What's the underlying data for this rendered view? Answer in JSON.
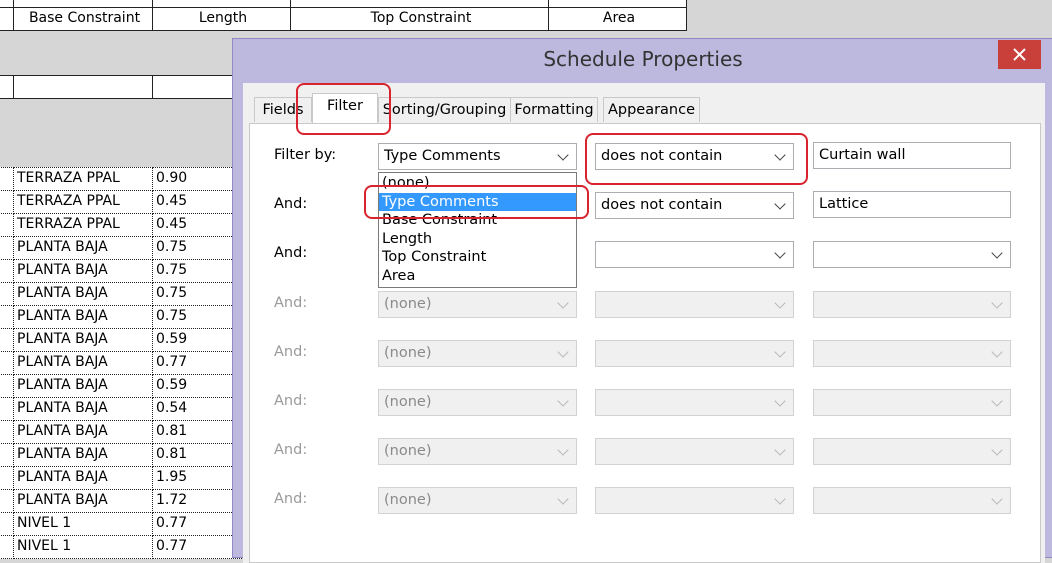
{
  "schedule": {
    "headers": [
      "Base Constraint",
      "Length",
      "Top Constraint",
      "Area"
    ],
    "rows": [
      [
        "TERRAZA PPAL",
        "0.90"
      ],
      [
        "TERRAZA PPAL",
        "0.45"
      ],
      [
        "TERRAZA PPAL",
        "0.45"
      ],
      [
        "PLANTA BAJA",
        "0.75"
      ],
      [
        "PLANTA BAJA",
        "0.75"
      ],
      [
        "PLANTA BAJA",
        "0.75"
      ],
      [
        "PLANTA BAJA",
        "0.75"
      ],
      [
        "PLANTA BAJA",
        "0.59"
      ],
      [
        "PLANTA BAJA",
        "0.77"
      ],
      [
        "PLANTA BAJA",
        "0.59"
      ],
      [
        "PLANTA BAJA",
        "0.54"
      ],
      [
        "PLANTA BAJA",
        "0.81"
      ],
      [
        "PLANTA BAJA",
        "0.81"
      ],
      [
        "PLANTA BAJA",
        "1.95"
      ],
      [
        "PLANTA BAJA",
        "1.72"
      ],
      [
        "NIVEL 1",
        "0.77"
      ],
      [
        "NIVEL 1",
        "0.77"
      ]
    ]
  },
  "dialog": {
    "title": "Schedule Properties",
    "tabs": [
      "Fields",
      "Filter",
      "Sorting/Grouping",
      "Formatting",
      "Appearance"
    ],
    "filters": [
      {
        "label": "Filter by:",
        "field": "Type Comments",
        "condition": "does not contain",
        "value": "Curtain wall",
        "enabled": true
      },
      {
        "label": "And:",
        "condition": "does not contain",
        "value": "Lattice",
        "enabled": true
      },
      {
        "label": "And:",
        "enabled": true
      },
      {
        "label": "And:",
        "field": "(none)",
        "enabled": false
      },
      {
        "label": "And:",
        "field": "(none)",
        "enabled": false
      },
      {
        "label": "And:",
        "field": "(none)",
        "enabled": false
      },
      {
        "label": "And:",
        "field": "(none)",
        "enabled": false
      },
      {
        "label": "And:",
        "field": "(none)",
        "enabled": false
      }
    ],
    "field_options": [
      "(none)",
      "Type Comments",
      "Base Constraint",
      "Length",
      "Top Constraint",
      "Area"
    ]
  }
}
